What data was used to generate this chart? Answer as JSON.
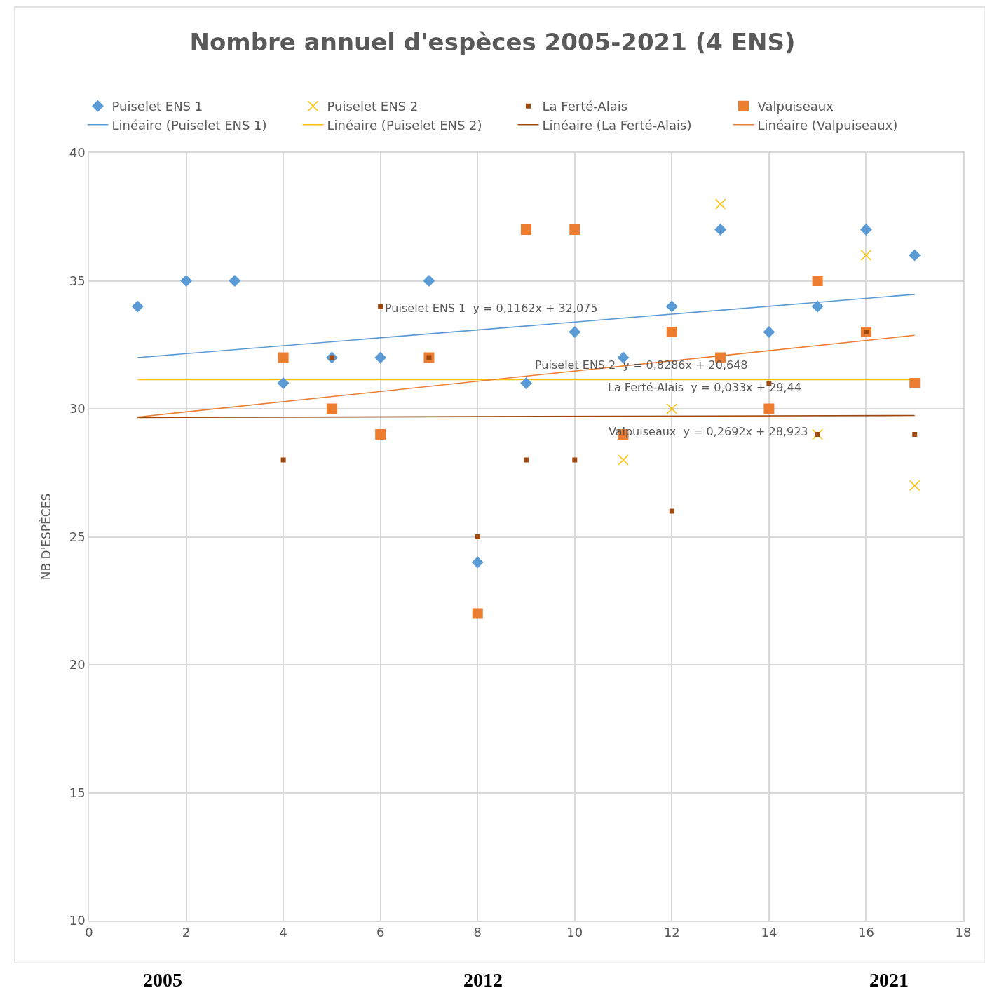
{
  "chart_data": {
    "type": "scatter",
    "title": "Nombre annuel d'espèces 2005-2021 (4 ENS)",
    "ylabel": "NB D'ESPÈCES",
    "x": [
      1,
      2,
      3,
      4,
      5,
      6,
      7,
      8,
      9,
      10,
      11,
      12,
      13,
      14,
      15,
      16,
      17
    ],
    "series": [
      {
        "name": "Puiselet ENS 1",
        "color": "#5b9bd5",
        "marker": "diamond",
        "values": [
          34,
          35,
          35,
          31,
          32,
          32,
          35,
          24,
          31,
          33,
          32,
          34,
          37,
          33,
          34,
          37,
          36
        ]
      },
      {
        "name": "Puiselet ENS 2",
        "color": "#ffc000",
        "marker": "cross",
        "values": [
          null,
          null,
          null,
          null,
          null,
          null,
          null,
          null,
          null,
          null,
          28,
          30,
          38,
          null,
          29,
          36,
          27
        ]
      },
      {
        "name": "La Ferté-Alais",
        "color": "#9e480e",
        "marker": "square",
        "values": [
          null,
          null,
          null,
          28,
          32,
          34,
          32,
          25,
          28,
          28,
          null,
          26,
          null,
          31,
          29,
          33,
          29
        ]
      },
      {
        "name": "Valpuiseaux",
        "color": "#ed7d31",
        "marker": "square",
        "values": [
          null,
          null,
          null,
          32,
          30,
          29,
          32,
          22,
          37,
          37,
          29,
          33,
          32,
          30,
          35,
          33,
          31
        ]
      },
      {
        "name": "Linéaire (Puiselet ENS 1)",
        "type": "line",
        "color": "#5b9bd5",
        "values": [
          32.0,
          null,
          null,
          null,
          null,
          null,
          null,
          null,
          null,
          null,
          null,
          null,
          null,
          null,
          null,
          null,
          34.47
        ]
      },
      {
        "name": "Linéaire (Puiselet ENS 2)",
        "type": "line",
        "color": "#ffc000",
        "values": [
          31.14,
          null,
          null,
          null,
          null,
          null,
          null,
          null,
          null,
          null,
          null,
          null,
          null,
          null,
          null,
          null,
          31.14
        ]
      },
      {
        "name": "Linéaire (La Ferté-Alais)",
        "type": "line",
        "color": "#9e480e",
        "values": [
          29.66,
          null,
          null,
          null,
          null,
          null,
          null,
          null,
          null,
          null,
          null,
          null,
          null,
          null,
          null,
          null,
          29.74
        ]
      },
      {
        "name": "Linéaire (Valpuiseaux)",
        "type": "line",
        "color": "#ed7d31",
        "values": [
          29.68,
          null,
          null,
          null,
          null,
          null,
          null,
          null,
          null,
          null,
          null,
          null,
          null,
          null,
          null,
          null,
          32.87
        ]
      }
    ],
    "xlim": [
      0,
      18
    ],
    "xticks": [
      0,
      2,
      4,
      6,
      8,
      10,
      12,
      14,
      16,
      18
    ],
    "ylim": [
      10,
      40
    ],
    "yticks": [
      10,
      15,
      20,
      25,
      30,
      35,
      40
    ],
    "grid": true,
    "legend": "top",
    "annotations": [
      "Puiselet ENS 1  y = 0,1162x + 32,075",
      "Puiselet ENS 2  y = 0,8286x + 20,648",
      "La Ferté-Alais  y = 0,033x + 29,44",
      "Valpuiseaux  y = 0,2692x + 28,923",
      "2005",
      "2012",
      "2021"
    ]
  }
}
